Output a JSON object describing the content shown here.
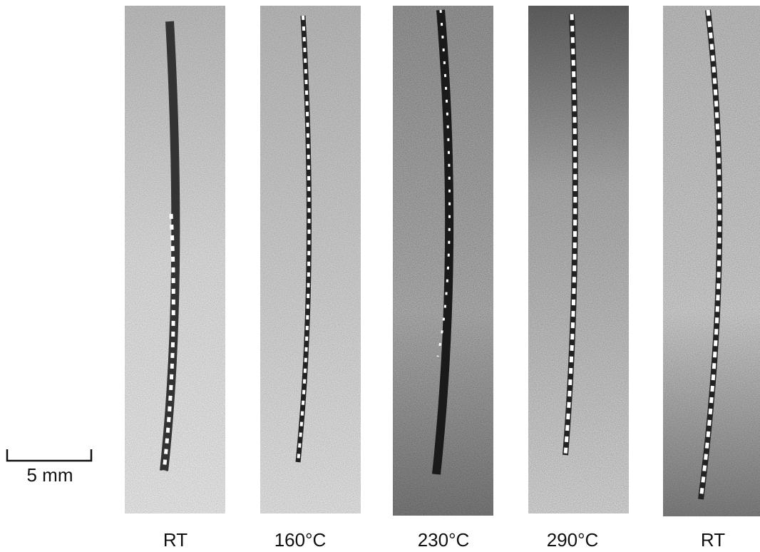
{
  "scale_bar": {
    "label": "5 mm"
  },
  "panels": [
    {
      "label": "RT"
    },
    {
      "label": "160°C"
    },
    {
      "label": "230°C"
    },
    {
      "label": "290°C"
    },
    {
      "label": "RT"
    }
  ]
}
